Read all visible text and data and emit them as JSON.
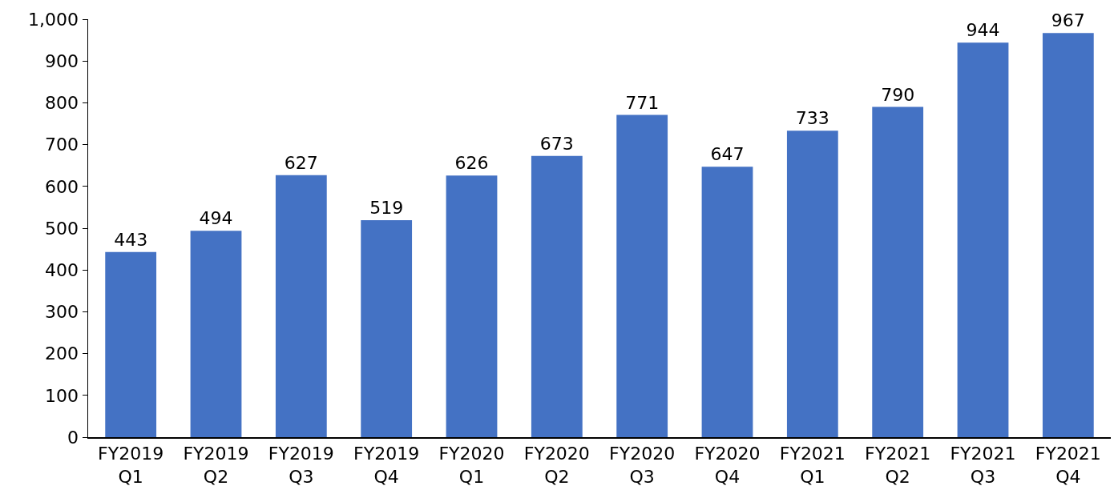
{
  "chart_data": {
    "type": "bar",
    "categories": [
      "FY2019 Q1",
      "FY2019 Q2",
      "FY2019 Q3",
      "FY2019 Q4",
      "FY2020 Q1",
      "FY2020 Q2",
      "FY2020 Q3",
      "FY2020 Q4",
      "FY2021 Q1",
      "FY2021 Q2",
      "FY2021 Q3",
      "FY2021 Q4"
    ],
    "values": [
      443,
      494,
      627,
      519,
      626,
      673,
      771,
      647,
      733,
      790,
      944,
      967
    ],
    "color": "#4472c4",
    "ylim": [
      0,
      1000
    ],
    "yticks": [
      0,
      100,
      200,
      300,
      400,
      500,
      600,
      700,
      800,
      900,
      {
        "value": 1000,
        "label": "1,000"
      }
    ],
    "grid": false,
    "data_labels": true
  }
}
